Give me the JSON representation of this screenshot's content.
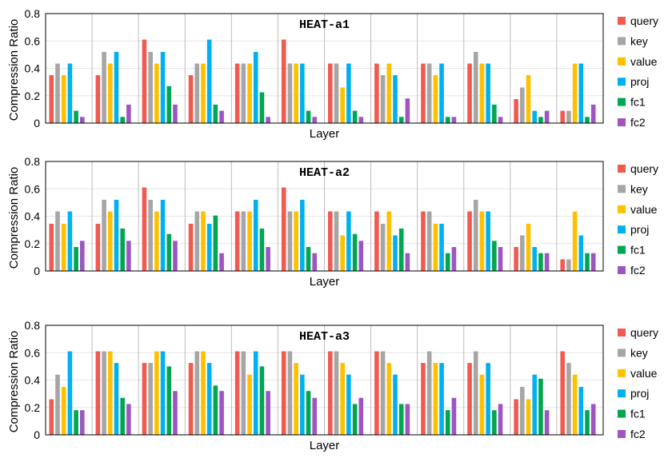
{
  "chart_data": [
    {
      "type": "bar",
      "title": "HEAT-a1",
      "xlabel": "Layer",
      "ylabel": "Compression Ratio",
      "ylim": [
        0,
        0.8
      ],
      "yticks": [
        "0",
        "0.2",
        "0.4",
        "0.6",
        "0.8"
      ],
      "legend_position": "right",
      "series": [
        {
          "name": "query",
          "color": "#ef5b50",
          "values": [
            0.35,
            0.35,
            0.61,
            0.35,
            0.435,
            0.61,
            0.435,
            0.435,
            0.435,
            0.435,
            0.175,
            0.09
          ]
        },
        {
          "name": "key",
          "color": "#a6a6a6",
          "values": [
            0.435,
            0.52,
            0.52,
            0.435,
            0.435,
            0.435,
            0.435,
            0.35,
            0.435,
            0.52,
            0.26,
            0.09
          ]
        },
        {
          "name": "value",
          "color": "#ffc000",
          "values": [
            0.35,
            0.435,
            0.435,
            0.435,
            0.435,
            0.435,
            0.26,
            0.435,
            0.35,
            0.435,
            0.35,
            0.435
          ]
        },
        {
          "name": "proj",
          "color": "#00b0f0",
          "values": [
            0.435,
            0.52,
            0.52,
            0.61,
            0.52,
            0.435,
            0.435,
            0.35,
            0.435,
            0.435,
            0.09,
            0.435
          ]
        },
        {
          "name": "fc1",
          "color": "#00a650",
          "values": [
            0.09,
            0.045,
            0.27,
            0.135,
            0.225,
            0.09,
            0.09,
            0.045,
            0.045,
            0.135,
            0.045,
            0.045
          ]
        },
        {
          "name": "fc2",
          "color": "#9e55c2",
          "values": [
            0.045,
            0.135,
            0.135,
            0.09,
            0.045,
            0.045,
            0.045,
            0.18,
            0.045,
            0.045,
            0.09,
            0.135
          ]
        }
      ]
    },
    {
      "type": "bar",
      "title": "HEAT-a2",
      "xlabel": "Layer",
      "ylabel": "Compression Ratio",
      "ylim": [
        0,
        0.8
      ],
      "yticks": [
        "0",
        "0.2",
        "0.4",
        "0.6",
        "0.8"
      ],
      "legend_position": "right",
      "series": [
        {
          "name": "query",
          "color": "#ef5b50",
          "values": [
            0.345,
            0.345,
            0.61,
            0.345,
            0.435,
            0.61,
            0.435,
            0.435,
            0.435,
            0.435,
            0.175,
            0.085
          ]
        },
        {
          "name": "key",
          "color": "#a6a6a6",
          "values": [
            0.435,
            0.52,
            0.52,
            0.435,
            0.435,
            0.435,
            0.435,
            0.345,
            0.435,
            0.52,
            0.26,
            0.085
          ]
        },
        {
          "name": "value",
          "color": "#ffc000",
          "values": [
            0.345,
            0.435,
            0.435,
            0.435,
            0.435,
            0.435,
            0.26,
            0.435,
            0.345,
            0.435,
            0.345,
            0.435
          ]
        },
        {
          "name": "proj",
          "color": "#00b0f0",
          "values": [
            0.435,
            0.52,
            0.52,
            0.345,
            0.52,
            0.52,
            0.435,
            0.26,
            0.345,
            0.435,
            0.175,
            0.26
          ]
        },
        {
          "name": "fc1",
          "color": "#00a650",
          "values": [
            0.175,
            0.31,
            0.27,
            0.405,
            0.31,
            0.175,
            0.27,
            0.31,
            0.13,
            0.22,
            0.13,
            0.13
          ]
        },
        {
          "name": "fc2",
          "color": "#9e55c2",
          "values": [
            0.22,
            0.22,
            0.22,
            0.13,
            0.175,
            0.13,
            0.22,
            0.13,
            0.175,
            0.175,
            0.13,
            0.13
          ]
        }
      ]
    },
    {
      "type": "bar",
      "title": "HEAT-a3",
      "xlabel": "Layer",
      "ylabel": "Compression Ratio",
      "ylim": [
        0,
        0.8
      ],
      "yticks": [
        "0",
        "0.2",
        "0.4",
        "0.6",
        "0.8"
      ],
      "legend_position": "right",
      "series": [
        {
          "name": "query",
          "color": "#ef5b50",
          "values": [
            0.26,
            0.61,
            0.525,
            0.525,
            0.61,
            0.61,
            0.61,
            0.61,
            0.525,
            0.525,
            0.26,
            0.61
          ]
        },
        {
          "name": "key",
          "color": "#a6a6a6",
          "values": [
            0.44,
            0.61,
            0.525,
            0.61,
            0.61,
            0.61,
            0.61,
            0.61,
            0.61,
            0.61,
            0.35,
            0.525
          ]
        },
        {
          "name": "value",
          "color": "#ffc000",
          "values": [
            0.35,
            0.61,
            0.61,
            0.61,
            0.44,
            0.525,
            0.525,
            0.525,
            0.525,
            0.44,
            0.26,
            0.44
          ]
        },
        {
          "name": "proj",
          "color": "#00b0f0",
          "values": [
            0.61,
            0.525,
            0.61,
            0.525,
            0.61,
            0.44,
            0.44,
            0.44,
            0.525,
            0.525,
            0.44,
            0.35
          ]
        },
        {
          "name": "fc1",
          "color": "#00a650",
          "values": [
            0.18,
            0.27,
            0.5,
            0.36,
            0.5,
            0.32,
            0.225,
            0.225,
            0.18,
            0.18,
            0.41,
            0.18
          ]
        },
        {
          "name": "fc2",
          "color": "#9e55c2",
          "values": [
            0.18,
            0.225,
            0.32,
            0.32,
            0.32,
            0.27,
            0.27,
            0.225,
            0.27,
            0.225,
            0.18,
            0.225
          ]
        }
      ]
    }
  ]
}
